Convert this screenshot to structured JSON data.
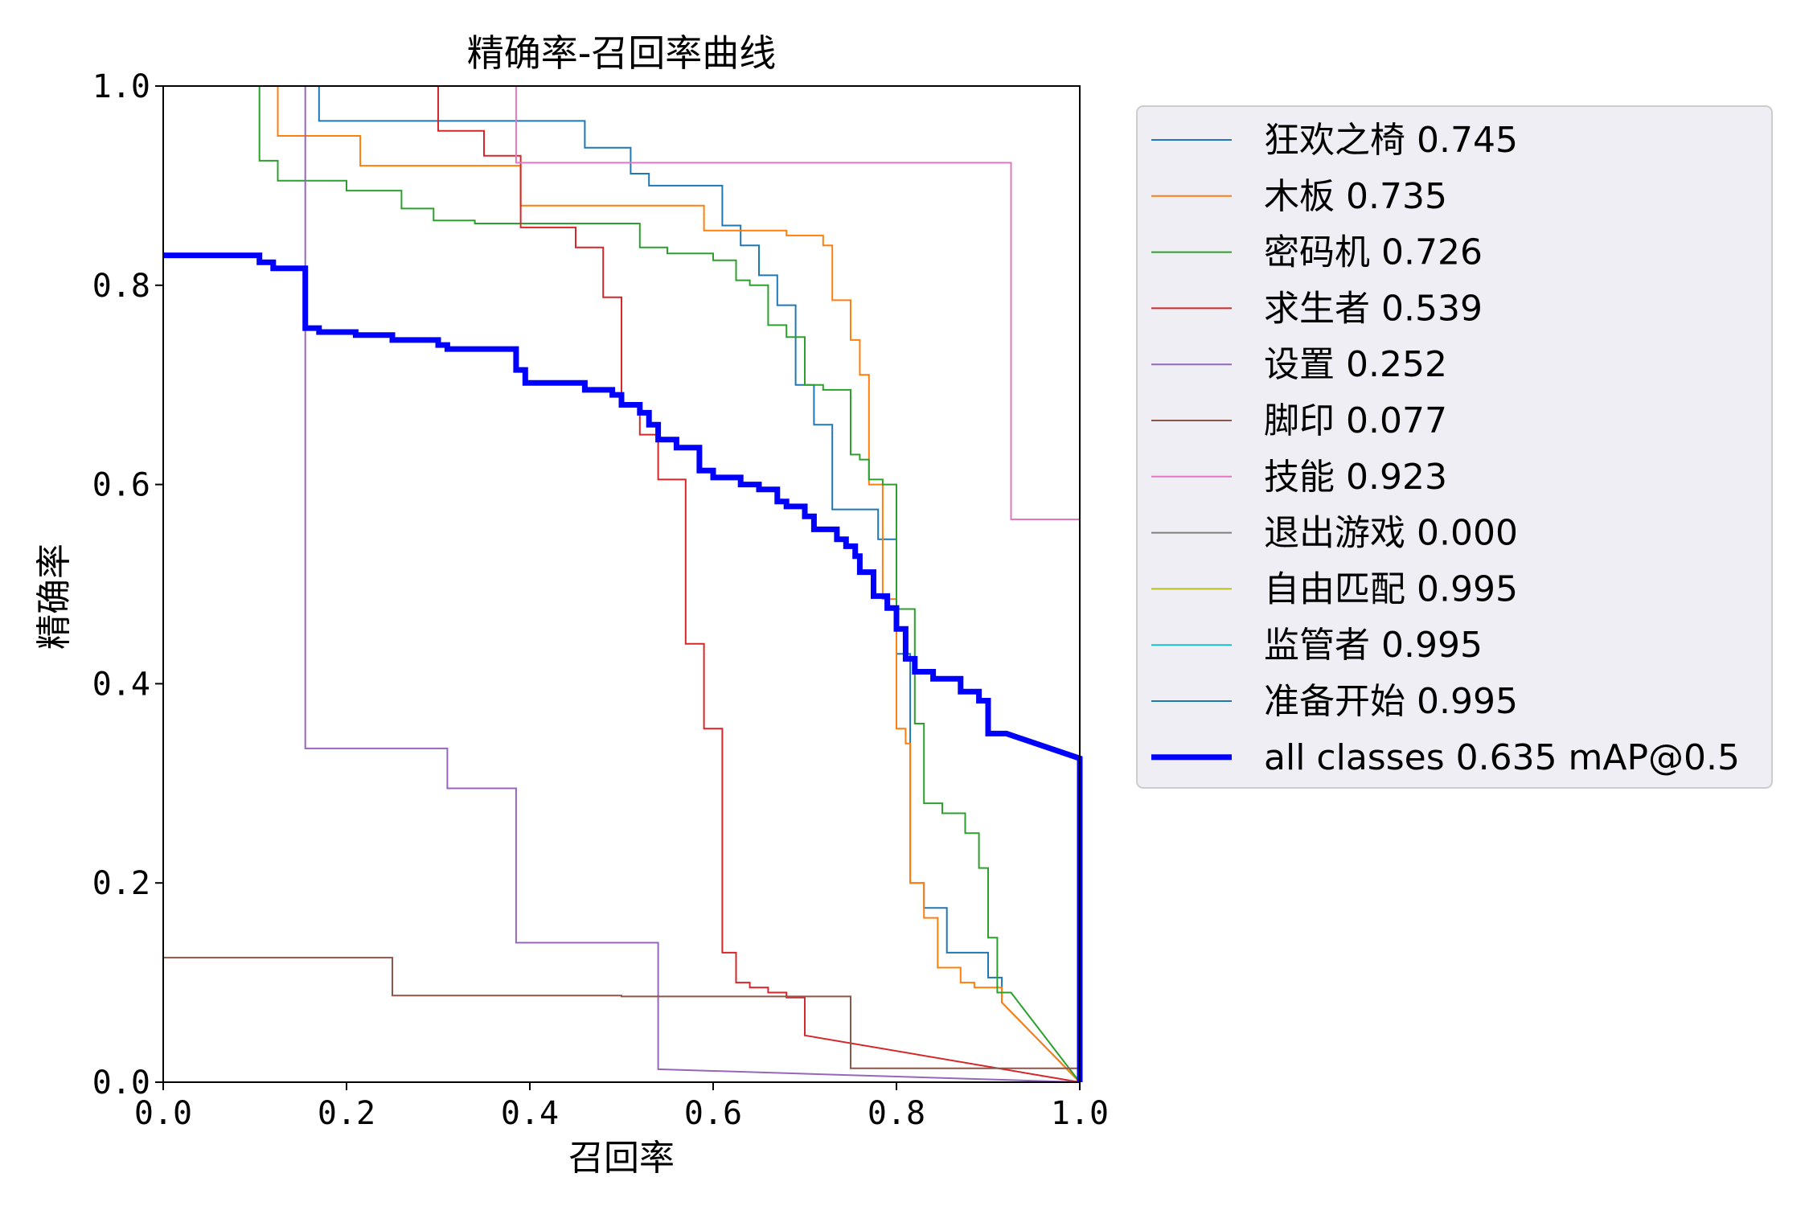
{
  "chart_data": {
    "type": "line",
    "title": "精确率-召回率曲线",
    "xlabel": "召回率",
    "ylabel": "精确率",
    "xlim": [
      0,
      1
    ],
    "ylim": [
      0,
      1
    ],
    "xticks": [
      "0.0",
      "0.2",
      "0.4",
      "0.6",
      "0.8",
      "1.0"
    ],
    "yticks": [
      "0.0",
      "0.2",
      "0.4",
      "0.6",
      "0.8",
      "1.0"
    ],
    "grid": false,
    "legend_position": "outside-right",
    "series": [
      {
        "name": "狂欢之椅 0.745",
        "color": "#1f77b4",
        "width": 2,
        "points": [
          [
            0.17,
            1.0
          ],
          [
            0.17,
            0.965
          ],
          [
            0.46,
            0.965
          ],
          [
            0.46,
            0.938
          ],
          [
            0.51,
            0.938
          ],
          [
            0.51,
            0.912
          ],
          [
            0.53,
            0.912
          ],
          [
            0.53,
            0.9
          ],
          [
            0.61,
            0.9
          ],
          [
            0.61,
            0.86
          ],
          [
            0.63,
            0.86
          ],
          [
            0.63,
            0.84
          ],
          [
            0.65,
            0.84
          ],
          [
            0.65,
            0.81
          ],
          [
            0.67,
            0.81
          ],
          [
            0.67,
            0.78
          ],
          [
            0.69,
            0.78
          ],
          [
            0.69,
            0.7
          ],
          [
            0.71,
            0.7
          ],
          [
            0.71,
            0.66
          ],
          [
            0.73,
            0.66
          ],
          [
            0.73,
            0.575
          ],
          [
            0.78,
            0.575
          ],
          [
            0.78,
            0.545
          ],
          [
            0.8,
            0.545
          ],
          [
            0.8,
            0.43
          ],
          [
            0.815,
            0.43
          ],
          [
            0.815,
            0.2
          ],
          [
            0.83,
            0.2
          ],
          [
            0.83,
            0.175
          ],
          [
            0.855,
            0.175
          ],
          [
            0.855,
            0.13
          ],
          [
            0.9,
            0.13
          ],
          [
            0.9,
            0.105
          ],
          [
            0.915,
            0.105
          ],
          [
            0.915,
            0.08
          ],
          [
            1.0,
            0.0
          ]
        ]
      },
      {
        "name": "木板 0.735",
        "color": "#ff7f0e",
        "width": 2,
        "points": [
          [
            0.125,
            1.0
          ],
          [
            0.125,
            0.95
          ],
          [
            0.215,
            0.95
          ],
          [
            0.215,
            0.92
          ],
          [
            0.39,
            0.92
          ],
          [
            0.39,
            0.88
          ],
          [
            0.59,
            0.88
          ],
          [
            0.59,
            0.855
          ],
          [
            0.68,
            0.855
          ],
          [
            0.68,
            0.85
          ],
          [
            0.72,
            0.85
          ],
          [
            0.72,
            0.84
          ],
          [
            0.73,
            0.84
          ],
          [
            0.73,
            0.785
          ],
          [
            0.75,
            0.785
          ],
          [
            0.75,
            0.745
          ],
          [
            0.76,
            0.745
          ],
          [
            0.76,
            0.71
          ],
          [
            0.77,
            0.71
          ],
          [
            0.77,
            0.6
          ],
          [
            0.785,
            0.6
          ],
          [
            0.785,
            0.485
          ],
          [
            0.8,
            0.485
          ],
          [
            0.8,
            0.355
          ],
          [
            0.81,
            0.355
          ],
          [
            0.81,
            0.34
          ],
          [
            0.815,
            0.34
          ],
          [
            0.815,
            0.2
          ],
          [
            0.83,
            0.2
          ],
          [
            0.83,
            0.165
          ],
          [
            0.845,
            0.165
          ],
          [
            0.845,
            0.115
          ],
          [
            0.87,
            0.115
          ],
          [
            0.87,
            0.1
          ],
          [
            0.885,
            0.1
          ],
          [
            0.885,
            0.095
          ],
          [
            0.915,
            0.095
          ],
          [
            0.915,
            0.08
          ],
          [
            1.0,
            0.0
          ]
        ]
      },
      {
        "name": "密码机 0.726",
        "color": "#2ca02c",
        "width": 2,
        "points": [
          [
            0.105,
            1.0
          ],
          [
            0.105,
            0.925
          ],
          [
            0.125,
            0.925
          ],
          [
            0.125,
            0.905
          ],
          [
            0.2,
            0.905
          ],
          [
            0.2,
            0.895
          ],
          [
            0.26,
            0.895
          ],
          [
            0.26,
            0.877
          ],
          [
            0.295,
            0.877
          ],
          [
            0.295,
            0.865
          ],
          [
            0.34,
            0.865
          ],
          [
            0.34,
            0.862
          ],
          [
            0.52,
            0.862
          ],
          [
            0.52,
            0.838
          ],
          [
            0.55,
            0.838
          ],
          [
            0.55,
            0.832
          ],
          [
            0.6,
            0.832
          ],
          [
            0.6,
            0.825
          ],
          [
            0.625,
            0.825
          ],
          [
            0.625,
            0.805
          ],
          [
            0.64,
            0.805
          ],
          [
            0.64,
            0.8
          ],
          [
            0.66,
            0.8
          ],
          [
            0.66,
            0.76
          ],
          [
            0.68,
            0.76
          ],
          [
            0.68,
            0.748
          ],
          [
            0.7,
            0.748
          ],
          [
            0.7,
            0.7
          ],
          [
            0.72,
            0.7
          ],
          [
            0.72,
            0.695
          ],
          [
            0.75,
            0.695
          ],
          [
            0.75,
            0.63
          ],
          [
            0.76,
            0.63
          ],
          [
            0.76,
            0.625
          ],
          [
            0.77,
            0.625
          ],
          [
            0.77,
            0.605
          ],
          [
            0.785,
            0.605
          ],
          [
            0.785,
            0.6
          ],
          [
            0.8,
            0.6
          ],
          [
            0.8,
            0.475
          ],
          [
            0.82,
            0.475
          ],
          [
            0.82,
            0.36
          ],
          [
            0.83,
            0.36
          ],
          [
            0.83,
            0.28
          ],
          [
            0.85,
            0.28
          ],
          [
            0.85,
            0.27
          ],
          [
            0.875,
            0.27
          ],
          [
            0.875,
            0.25
          ],
          [
            0.89,
            0.25
          ],
          [
            0.89,
            0.215
          ],
          [
            0.9,
            0.215
          ],
          [
            0.9,
            0.145
          ],
          [
            0.91,
            0.145
          ],
          [
            0.91,
            0.09
          ],
          [
            0.925,
            0.09
          ],
          [
            1.0,
            0.0
          ]
        ]
      },
      {
        "name": "求生者 0.539",
        "color": "#d62728",
        "width": 2,
        "points": [
          [
            0.3,
            1.0
          ],
          [
            0.3,
            0.955
          ],
          [
            0.35,
            0.955
          ],
          [
            0.35,
            0.93
          ],
          [
            0.39,
            0.93
          ],
          [
            0.39,
            0.858
          ],
          [
            0.45,
            0.858
          ],
          [
            0.45,
            0.838
          ],
          [
            0.48,
            0.838
          ],
          [
            0.48,
            0.788
          ],
          [
            0.5,
            0.788
          ],
          [
            0.5,
            0.68
          ],
          [
            0.52,
            0.68
          ],
          [
            0.52,
            0.65
          ],
          [
            0.54,
            0.65
          ],
          [
            0.54,
            0.605
          ],
          [
            0.57,
            0.605
          ],
          [
            0.57,
            0.44
          ],
          [
            0.59,
            0.44
          ],
          [
            0.59,
            0.355
          ],
          [
            0.61,
            0.355
          ],
          [
            0.61,
            0.13
          ],
          [
            0.625,
            0.13
          ],
          [
            0.625,
            0.1
          ],
          [
            0.64,
            0.1
          ],
          [
            0.64,
            0.095
          ],
          [
            0.66,
            0.095
          ],
          [
            0.66,
            0.09
          ],
          [
            0.68,
            0.09
          ],
          [
            0.68,
            0.085
          ],
          [
            0.7,
            0.085
          ],
          [
            0.7,
            0.047
          ],
          [
            1.0,
            0.0
          ]
        ]
      },
      {
        "name": "设置 0.252",
        "color": "#9467bd",
        "width": 2,
        "points": [
          [
            0.155,
            1.0
          ],
          [
            0.155,
            0.335
          ],
          [
            0.31,
            0.335
          ],
          [
            0.31,
            0.295
          ],
          [
            0.385,
            0.295
          ],
          [
            0.385,
            0.14
          ],
          [
            0.54,
            0.14
          ],
          [
            0.54,
            0.013
          ],
          [
            1.0,
            0.0
          ]
        ]
      },
      {
        "name": "脚印 0.077",
        "color": "#8c564b",
        "width": 2,
        "points": [
          [
            0.0,
            0.125
          ],
          [
            0.25,
            0.125
          ],
          [
            0.25,
            0.087
          ],
          [
            0.5,
            0.087
          ],
          [
            0.5,
            0.086
          ],
          [
            0.75,
            0.086
          ],
          [
            0.75,
            0.014
          ],
          [
            1.0,
            0.014
          ]
        ]
      },
      {
        "name": "技能 0.923",
        "color": "#e377c2",
        "width": 2,
        "points": [
          [
            0.385,
            1.0
          ],
          [
            0.385,
            0.923
          ],
          [
            0.925,
            0.923
          ],
          [
            0.925,
            0.565
          ],
          [
            1.0,
            0.565
          ]
        ]
      },
      {
        "name": "退出游戏 0.000",
        "color": "#7f7f7f",
        "width": 2,
        "points": []
      },
      {
        "name": "自由匹配 0.995",
        "color": "#bcbd22",
        "width": 2,
        "points": [
          [
            0.0,
            1.0
          ],
          [
            1.0,
            1.0
          ],
          [
            1.0,
            0.0
          ]
        ]
      },
      {
        "name": "监管者 0.995",
        "color": "#17becf",
        "width": 2,
        "points": [
          [
            0.0,
            1.0
          ],
          [
            1.0,
            1.0
          ],
          [
            1.0,
            0.0
          ]
        ]
      },
      {
        "name": "准备开始 0.995",
        "color": "#1f77b4",
        "width": 2,
        "points": [
          [
            0.0,
            1.0
          ],
          [
            1.0,
            1.0
          ],
          [
            1.0,
            0.0
          ]
        ]
      },
      {
        "name": "all classes 0.635 mAP@0.5",
        "color": "#0000ff",
        "width": 7,
        "points": [
          [
            0.0,
            0.83
          ],
          [
            0.105,
            0.83
          ],
          [
            0.105,
            0.823
          ],
          [
            0.12,
            0.823
          ],
          [
            0.12,
            0.817
          ],
          [
            0.155,
            0.817
          ],
          [
            0.155,
            0.757
          ],
          [
            0.17,
            0.757
          ],
          [
            0.17,
            0.753
          ],
          [
            0.21,
            0.753
          ],
          [
            0.21,
            0.75
          ],
          [
            0.25,
            0.75
          ],
          [
            0.25,
            0.745
          ],
          [
            0.3,
            0.745
          ],
          [
            0.3,
            0.74
          ],
          [
            0.31,
            0.74
          ],
          [
            0.31,
            0.736
          ],
          [
            0.385,
            0.736
          ],
          [
            0.385,
            0.715
          ],
          [
            0.395,
            0.715
          ],
          [
            0.395,
            0.702
          ],
          [
            0.46,
            0.702
          ],
          [
            0.46,
            0.695
          ],
          [
            0.49,
            0.695
          ],
          [
            0.49,
            0.69
          ],
          [
            0.5,
            0.69
          ],
          [
            0.5,
            0.68
          ],
          [
            0.52,
            0.68
          ],
          [
            0.52,
            0.672
          ],
          [
            0.53,
            0.672
          ],
          [
            0.53,
            0.66
          ],
          [
            0.54,
            0.66
          ],
          [
            0.54,
            0.645
          ],
          [
            0.56,
            0.645
          ],
          [
            0.56,
            0.637
          ],
          [
            0.585,
            0.637
          ],
          [
            0.585,
            0.614
          ],
          [
            0.6,
            0.614
          ],
          [
            0.6,
            0.607
          ],
          [
            0.63,
            0.607
          ],
          [
            0.63,
            0.6
          ],
          [
            0.65,
            0.6
          ],
          [
            0.65,
            0.595
          ],
          [
            0.67,
            0.595
          ],
          [
            0.67,
            0.583
          ],
          [
            0.68,
            0.583
          ],
          [
            0.68,
            0.578
          ],
          [
            0.7,
            0.578
          ],
          [
            0.7,
            0.568
          ],
          [
            0.71,
            0.568
          ],
          [
            0.71,
            0.555
          ],
          [
            0.735,
            0.555
          ],
          [
            0.735,
            0.545
          ],
          [
            0.745,
            0.545
          ],
          [
            0.745,
            0.538
          ],
          [
            0.755,
            0.538
          ],
          [
            0.755,
            0.528
          ],
          [
            0.76,
            0.528
          ],
          [
            0.76,
            0.512
          ],
          [
            0.775,
            0.512
          ],
          [
            0.775,
            0.488
          ],
          [
            0.79,
            0.488
          ],
          [
            0.79,
            0.476
          ],
          [
            0.8,
            0.476
          ],
          [
            0.8,
            0.455
          ],
          [
            0.81,
            0.455
          ],
          [
            0.81,
            0.425
          ],
          [
            0.82,
            0.425
          ],
          [
            0.82,
            0.412
          ],
          [
            0.84,
            0.412
          ],
          [
            0.84,
            0.405
          ],
          [
            0.87,
            0.405
          ],
          [
            0.87,
            0.392
          ],
          [
            0.89,
            0.392
          ],
          [
            0.89,
            0.383
          ],
          [
            0.9,
            0.383
          ],
          [
            0.9,
            0.35
          ],
          [
            0.92,
            0.35
          ],
          [
            1.0,
            0.325
          ],
          [
            1.0,
            0.0
          ]
        ]
      }
    ]
  }
}
